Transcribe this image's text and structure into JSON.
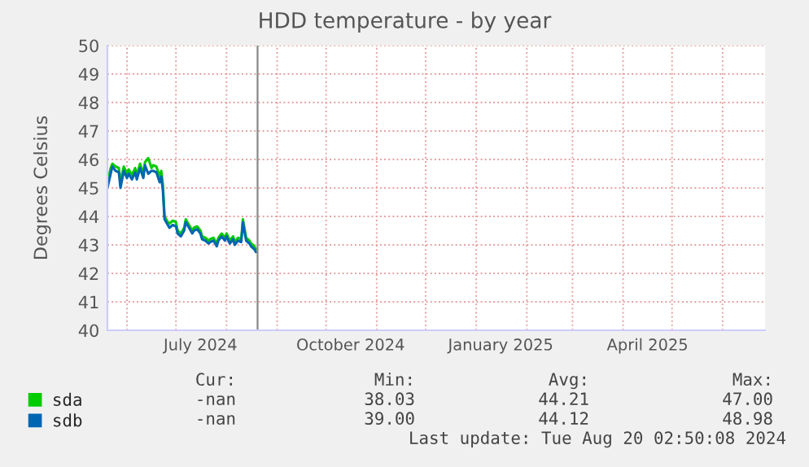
{
  "chart_data": {
    "type": "line",
    "title": "HDD temperature - by year",
    "ylabel": "Degrees Celsius",
    "x": [
      "2024-05-20",
      "2024-05-22",
      "2024-05-23",
      "2024-05-25",
      "2024-05-27",
      "2024-05-28",
      "2024-05-30",
      "2024-06-01",
      "2024-06-02",
      "2024-06-04",
      "2024-06-06",
      "2024-06-07",
      "2024-06-09",
      "2024-06-11",
      "2024-06-12",
      "2024-06-14",
      "2024-06-16",
      "2024-06-17",
      "2024-06-19",
      "2024-06-21",
      "2024-06-22",
      "2024-06-23",
      "2024-06-24",
      "2024-06-26",
      "2024-06-27",
      "2024-06-29",
      "2024-07-01",
      "2024-07-02",
      "2024-07-04",
      "2024-07-06",
      "2024-07-07",
      "2024-07-09",
      "2024-07-11",
      "2024-07-12",
      "2024-07-14",
      "2024-07-16",
      "2024-07-17",
      "2024-07-19",
      "2024-07-21",
      "2024-07-22",
      "2024-07-24",
      "2024-07-26",
      "2024-07-27",
      "2024-07-29",
      "2024-07-31",
      "2024-08-01",
      "2024-08-03",
      "2024-08-05",
      "2024-08-06",
      "2024-08-08",
      "2024-08-10",
      "2024-08-11",
      "2024-08-13",
      "2024-08-15",
      "2024-08-16",
      "2024-08-18",
      "2024-08-19"
    ],
    "series": [
      {
        "name": "sda",
        "color": "#00cc00",
        "values": [
          45.2,
          45.7,
          45.85,
          45.75,
          45.7,
          45.2,
          45.75,
          45.5,
          45.65,
          45.45,
          45.7,
          45.45,
          45.85,
          45.5,
          45.9,
          46.05,
          45.7,
          45.8,
          45.75,
          45.4,
          45.6,
          45.1,
          44.0,
          43.8,
          43.75,
          43.85,
          43.8,
          43.5,
          43.4,
          43.6,
          43.9,
          43.7,
          43.5,
          43.6,
          43.65,
          43.5,
          43.3,
          43.25,
          43.15,
          43.2,
          43.25,
          43.05,
          43.25,
          43.4,
          43.25,
          43.4,
          43.15,
          43.3,
          43.1,
          43.25,
          43.2,
          43.9,
          43.25,
          43.15,
          43.05,
          42.95,
          42.85
        ]
      },
      {
        "name": "sdb",
        "color": "#0066b3",
        "values": [
          45.0,
          45.5,
          45.75,
          45.6,
          45.55,
          45.0,
          45.6,
          45.35,
          45.5,
          45.3,
          45.55,
          45.3,
          45.7,
          45.35,
          45.8,
          45.5,
          45.6,
          45.6,
          45.55,
          45.2,
          45.4,
          44.9,
          43.9,
          43.7,
          43.6,
          43.7,
          43.65,
          43.4,
          43.3,
          43.5,
          43.8,
          43.6,
          43.4,
          43.5,
          43.55,
          43.4,
          43.2,
          43.15,
          43.05,
          43.1,
          43.15,
          42.95,
          43.15,
          43.3,
          43.15,
          43.3,
          43.05,
          43.2,
          43.0,
          43.15,
          43.1,
          43.8,
          43.15,
          43.05,
          42.95,
          42.85,
          42.75
        ]
      }
    ],
    "xlim": [
      "2024-05-20",
      "2025-06-27"
    ],
    "xticks": [
      {
        "value": "2024-06-01",
        "label": null
      },
      {
        "value": "2024-07-01",
        "label": null
      },
      {
        "value": "2024-08-01",
        "label": null
      },
      {
        "value": "2024-09-01",
        "label": null
      },
      {
        "value": "2024-10-01",
        "label": null
      },
      {
        "value": "2024-11-01",
        "label": null
      },
      {
        "value": "2024-12-01",
        "label": null
      },
      {
        "value": "2025-01-01",
        "label": null
      },
      {
        "value": "2025-02-01",
        "label": null
      },
      {
        "value": "2025-03-01",
        "label": null
      },
      {
        "value": "2025-04-01",
        "label": null
      },
      {
        "value": "2025-05-01",
        "label": null
      },
      {
        "value": "2025-06-01",
        "label": null
      },
      {
        "value": "2024-07-16",
        "label": "July 2024"
      },
      {
        "value": "2024-10-16",
        "label": "October 2024"
      },
      {
        "value": "2025-01-16",
        "label": "January 2025"
      },
      {
        "value": "2025-04-16",
        "label": "April 2025"
      }
    ],
    "ylim": [
      40,
      50
    ],
    "yticks": [
      40,
      41,
      42,
      43,
      44,
      45,
      46,
      47,
      48,
      49,
      50
    ],
    "grid": true,
    "legend": "bottom left",
    "line_style": "solid",
    "marker": "none",
    "ref_lines": [
      {
        "axis": "x",
        "value": "2024-08-20",
        "color": "#888888"
      }
    ],
    "annotations": [
      "Cur:",
      "Min:",
      "Avg:",
      "Max:",
      "-nan",
      "38.03",
      "44.21",
      "47.00",
      "-nan",
      "39.00",
      "44.12",
      "48.98",
      "Last update: Tue Aug 20 02:50:08 2024"
    ]
  }
}
